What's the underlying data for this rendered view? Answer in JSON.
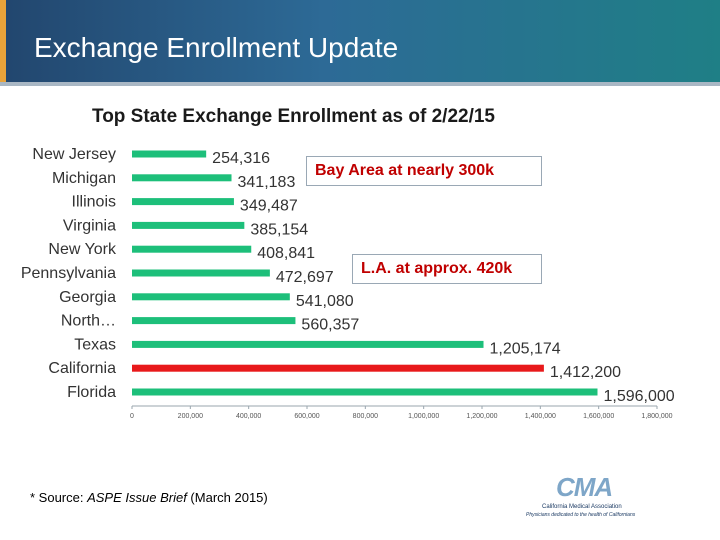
{
  "slide": {
    "title": "Exchange Enrollment Update",
    "source_prefix": "* Source: ",
    "source_brief": "ASPE Issue Brief",
    "source_suffix": " (March 2015)"
  },
  "callouts": {
    "bay_area": "Bay Area at nearly 300k",
    "la": "L.A. at approx. 420k"
  },
  "logo": {
    "mark": "CMA",
    "name": "California Medical Association",
    "tagline": "Physicians dedicated to the health of Californians"
  },
  "colors": {
    "bar": "#1dbf7a",
    "highlight": "#e8191b",
    "axis": "#9aa6ae"
  },
  "chart_data": {
    "type": "bar",
    "orientation": "horizontal",
    "title": "Top State Exchange Enrollment as of 2/22/15",
    "categories": [
      "New Jersey",
      "Michigan",
      "Illinois",
      "Virginia",
      "New York",
      "Pennsylvania",
      "Georgia",
      "North…",
      "Texas",
      "California",
      "Florida"
    ],
    "values": [
      254316,
      341183,
      349487,
      385154,
      408841,
      472697,
      541080,
      560357,
      1205174,
      1412200,
      1596000
    ],
    "value_labels": [
      "254,316",
      "341,183",
      "349,487",
      "385,154",
      "408,841",
      "472,697",
      "541,080",
      "560,357",
      "1,205,174",
      "1,412,200",
      "1,596,000"
    ],
    "highlight": "California",
    "xlim": [
      0,
      1800000
    ],
    "x_ticks": [
      0,
      200000,
      400000,
      600000,
      800000,
      1000000,
      1200000,
      1400000,
      1600000,
      1800000
    ],
    "x_tick_labels": [
      "0",
      "200,000",
      "400,000",
      "600,000",
      "800,000",
      "1,000,000",
      "1,200,000",
      "1,400,000",
      "1,600,000",
      "1,800,000"
    ],
    "xlabel": "",
    "ylabel": "",
    "grid": false,
    "legend": "none"
  }
}
